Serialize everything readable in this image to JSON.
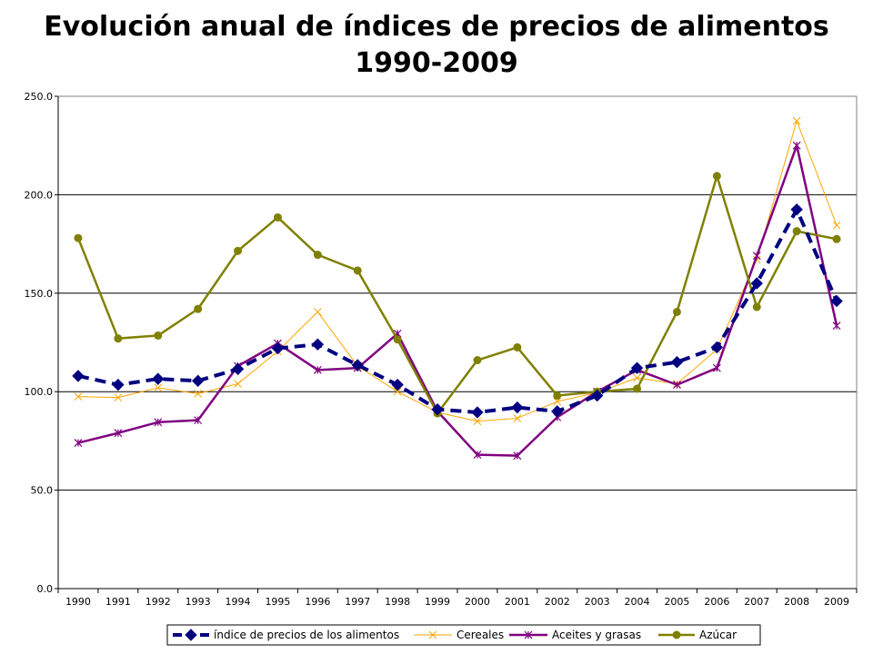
{
  "chart_data": {
    "type": "line",
    "title": "Evolución anual de índices de precios de alimentos",
    "subtitle": "1990-2009",
    "xlabel": "",
    "ylabel": "",
    "ylim": [
      0,
      250
    ],
    "yticks": [
      "0.0",
      "50.0",
      "100.0",
      "150.0",
      "200.0",
      "250.0"
    ],
    "grid": true,
    "legend_position": "bottom",
    "categories": [
      "1990",
      "1991",
      "1992",
      "1993",
      "1994",
      "1995",
      "1996",
      "1997",
      "1998",
      "1999",
      "2000",
      "2001",
      "2002",
      "2003",
      "2004",
      "2005",
      "2006",
      "2007",
      "2008",
      "2009"
    ],
    "series": [
      {
        "name": "índice de precios de los alimentos",
        "color": "#000080",
        "style": "dashed",
        "marker": "diamond",
        "values": [
          108,
          103.5,
          106.5,
          105.5,
          111.5,
          122,
          124,
          113.5,
          103.5,
          91,
          89.5,
          92,
          90,
          98,
          112,
          115,
          122.5,
          155,
          192.5,
          146
        ]
      },
      {
        "name": "Cereales",
        "color": "#ffa500",
        "style": "solid-thin",
        "marker": "x",
        "values": [
          97.5,
          97,
          102,
          99,
          104,
          120.5,
          140.5,
          113,
          100,
          89.5,
          85,
          86.5,
          95,
          99.5,
          107,
          104,
          121.5,
          167,
          237.5,
          184.5
        ]
      },
      {
        "name": "Aceites y grasas",
        "color": "#800080",
        "style": "solid",
        "marker": "star",
        "values": [
          74,
          79,
          84.5,
          85.5,
          113,
          124.5,
          111,
          112,
          129.5,
          90,
          68,
          67.5,
          87,
          100,
          111,
          103.5,
          112,
          169,
          225,
          133.5
        ]
      },
      {
        "name": "Azúcar",
        "color": "#808000",
        "style": "solid",
        "marker": "circle",
        "values": [
          178,
          127,
          128.5,
          142,
          171.5,
          188.5,
          169.5,
          161.5,
          126.5,
          89,
          116,
          122.5,
          98,
          100,
          101.5,
          140.5,
          209.5,
          143,
          181.5,
          177.5
        ]
      }
    ]
  }
}
